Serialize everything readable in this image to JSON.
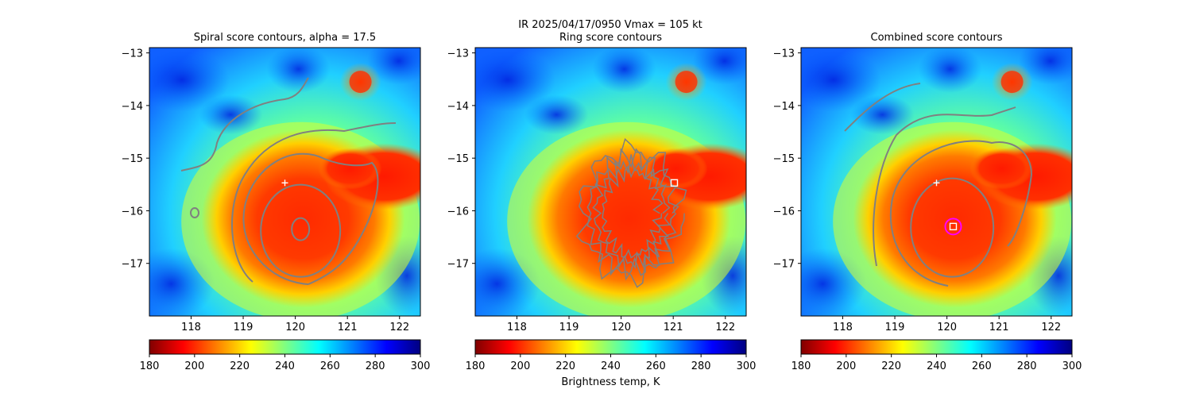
{
  "suptitle": {
    "line1": "IR  2025/04/17/0950    Vmax = 105 kt"
  },
  "colormap": {
    "name": "jet",
    "stops": [
      "#800000",
      "#ff0000",
      "#ff8000",
      "#ffff00",
      "#80ff80",
      "#00ffff",
      "#0080ff",
      "#0000ff",
      "#000080"
    ]
  },
  "chart_data": [
    {
      "type": "heatmap",
      "title": "Spiral score contours, alpha = 17.5",
      "xlim": [
        117.2,
        122.4
      ],
      "ylim": [
        -18.0,
        -12.9
      ],
      "xticks": [
        118,
        119,
        120,
        121,
        122
      ],
      "yticks": [
        -13,
        -14,
        -15,
        -16,
        -17
      ],
      "colorbar": {
        "range": [
          180,
          300
        ],
        "ticks": [
          180,
          200,
          220,
          240,
          260,
          280,
          300
        ],
        "label": ""
      },
      "markers": [
        {
          "type": "plus",
          "x": 119.8,
          "y": -15.47,
          "color": "#ffffff"
        }
      ],
      "contour_color": "#808080"
    },
    {
      "type": "heatmap",
      "title": "Ring score contours",
      "xlim": [
        117.2,
        122.4
      ],
      "ylim": [
        -18.0,
        -12.9
      ],
      "xticks": [
        118,
        119,
        120,
        121,
        122
      ],
      "yticks": [
        -13,
        -14,
        -15,
        -16,
        -17
      ],
      "colorbar": {
        "range": [
          180,
          300
        ],
        "ticks": [
          180,
          200,
          220,
          240,
          260,
          280,
          300
        ],
        "label": "Brightness temp, K"
      },
      "markers": [
        {
          "type": "square",
          "x": 121.02,
          "y": -15.47,
          "color": "#ffffff"
        }
      ],
      "contour_color": "#808080"
    },
    {
      "type": "heatmap",
      "title": "Combined score contours",
      "xlim": [
        117.2,
        122.4
      ],
      "ylim": [
        -18.0,
        -12.9
      ],
      "xticks": [
        118,
        119,
        120,
        121,
        122
      ],
      "yticks": [
        -13,
        -14,
        -15,
        -16,
        -17
      ],
      "colorbar": {
        "range": [
          180,
          300
        ],
        "ticks": [
          180,
          200,
          220,
          240,
          260,
          280,
          300
        ],
        "label": ""
      },
      "markers": [
        {
          "type": "plus",
          "x": 119.8,
          "y": -15.47,
          "color": "#ffffff"
        },
        {
          "type": "circle",
          "x": 120.12,
          "y": -16.3,
          "color": "#ff00ff"
        },
        {
          "type": "square",
          "x": 120.12,
          "y": -16.3,
          "color": "#ffffff"
        }
      ],
      "contour_color": "#808080"
    }
  ]
}
